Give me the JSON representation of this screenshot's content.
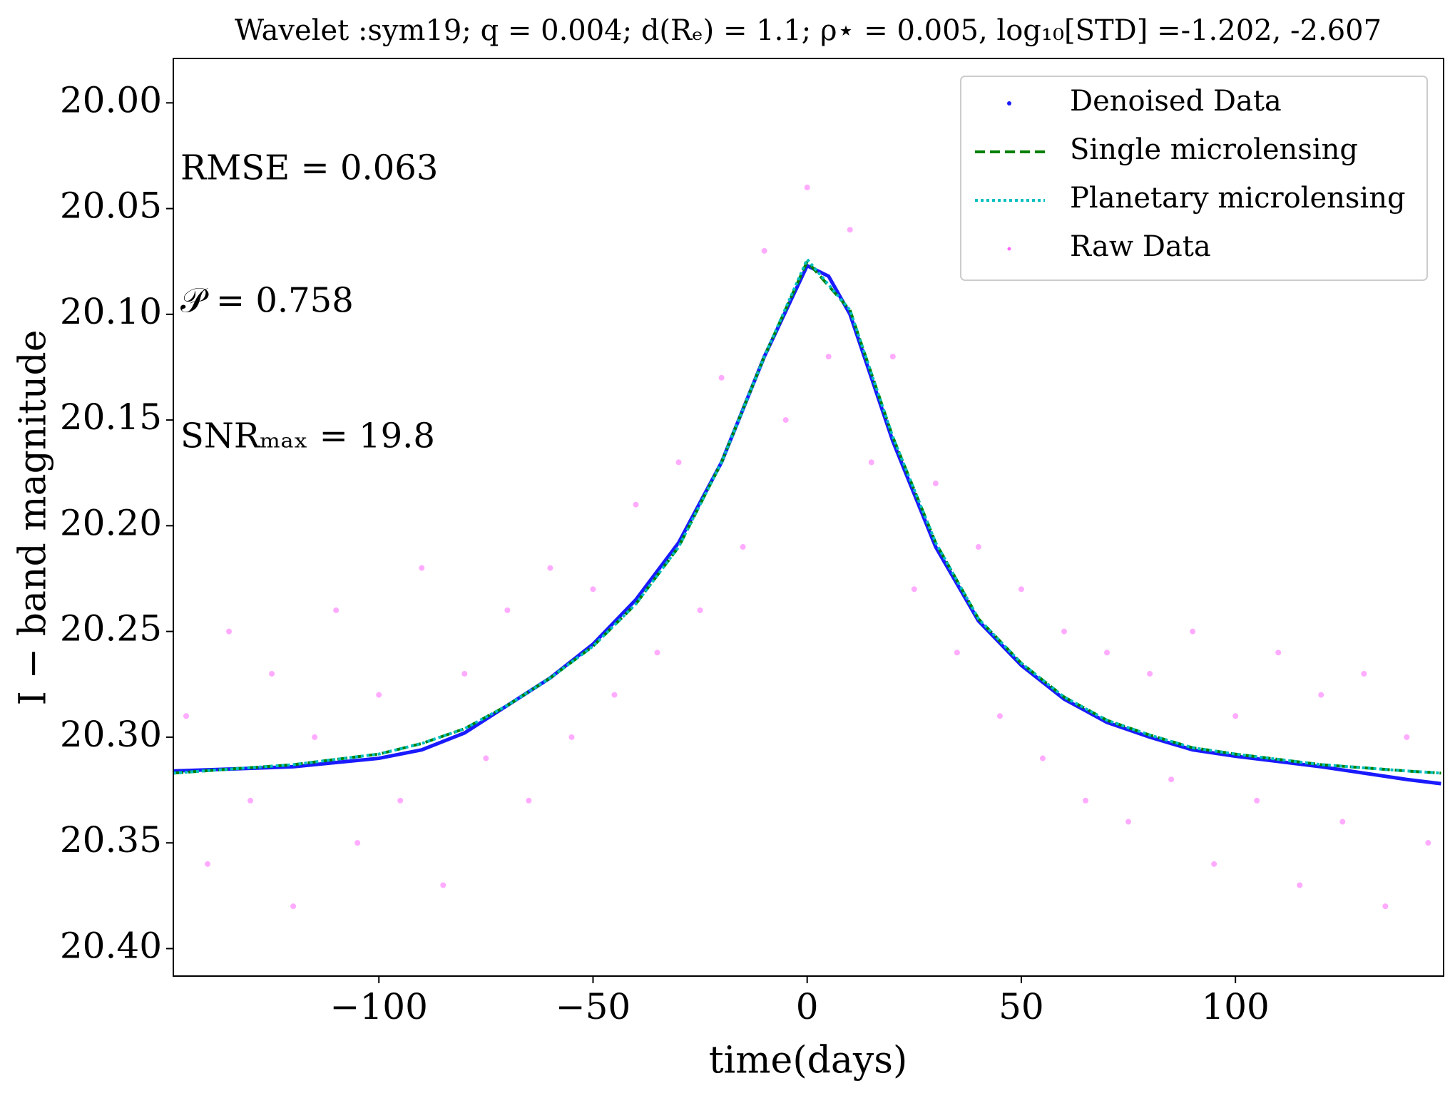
{
  "chart_data": {
    "type": "line",
    "title": "Wavelet :sym19;  q =  0.004;  d(Rₑ) =  1.1;  ρ⋆ =  0.005,  log₁₀[STD] =-1.202, -2.607",
    "x_label": "time(days)",
    "y_label": "I − band magnitude",
    "annotations": [
      "RMSE =  0.063",
      "𝒫 =  0.758",
      "SNRₘₐₓ =  19.8"
    ],
    "xlim": [
      -148,
      148.6
    ],
    "ylim": [
      20.413,
      19.979
    ],
    "xticks": [
      {
        "value": -100,
        "label": "−100"
      },
      {
        "value": -50,
        "label": "−50"
      },
      0,
      50,
      100
    ],
    "yticks": [
      {
        "value": 20.0,
        "label": "20.00"
      },
      20.05,
      {
        "value": 20.1,
        "label": "20.10"
      },
      20.15,
      {
        "value": 20.2,
        "label": "20.20"
      },
      20.25,
      {
        "value": 20.3,
        "label": "20.30"
      },
      20.35,
      {
        "value": 20.4,
        "label": "20.40"
      }
    ],
    "legend": "upper right",
    "series": [
      {
        "name": "Denoised Data",
        "color": "#1a1aff",
        "style": "solid",
        "x": [
          -148,
          -120,
          -100,
          -90,
          -80,
          -70,
          -60,
          -50,
          -40,
          -30,
          -20,
          -10,
          0,
          5,
          10,
          20,
          30,
          40,
          50,
          60,
          70,
          80,
          90,
          100,
          120,
          140,
          148
        ],
        "values": [
          20.316,
          20.314,
          20.31,
          20.306,
          20.298,
          20.285,
          20.272,
          20.256,
          20.235,
          20.208,
          20.17,
          20.12,
          20.077,
          20.082,
          20.1,
          20.16,
          20.21,
          20.245,
          20.266,
          20.282,
          20.293,
          20.3,
          20.306,
          20.309,
          20.314,
          20.32,
          20.322
        ]
      },
      {
        "name": "Single microlensing",
        "color": "#008000",
        "style": "dashed",
        "x": [
          -148,
          -120,
          -100,
          -90,
          -80,
          -70,
          -60,
          -50,
          -40,
          -30,
          -20,
          -10,
          0,
          10,
          20,
          30,
          40,
          50,
          60,
          70,
          80,
          90,
          100,
          120,
          140,
          148
        ],
        "values": [
          20.317,
          20.313,
          20.308,
          20.303,
          20.296,
          20.285,
          20.272,
          20.257,
          20.237,
          20.21,
          20.17,
          20.12,
          20.075,
          20.098,
          20.158,
          20.208,
          20.244,
          20.265,
          20.281,
          20.292,
          20.299,
          20.305,
          20.308,
          20.313,
          20.316,
          20.317
        ]
      },
      {
        "name": "Planetary microlensing",
        "color": "#00bfbf",
        "style": "dotted",
        "x": [
          -148,
          -120,
          -100,
          -90,
          -80,
          -70,
          -60,
          -50,
          -40,
          -30,
          -20,
          -10,
          0,
          10,
          20,
          30,
          40,
          50,
          60,
          70,
          80,
          90,
          100,
          120,
          140,
          148
        ],
        "values": [
          20.317,
          20.313,
          20.308,
          20.303,
          20.296,
          20.285,
          20.272,
          20.257,
          20.237,
          20.21,
          20.17,
          20.12,
          20.074,
          20.098,
          20.158,
          20.208,
          20.244,
          20.265,
          20.281,
          20.292,
          20.299,
          20.305,
          20.308,
          20.313,
          20.316,
          20.317
        ]
      },
      {
        "name": "Raw Data",
        "color": "#ff66ff",
        "style": "scatter",
        "x": [
          -145,
          -140,
          -135,
          -130,
          -125,
          -120,
          -115,
          -110,
          -105,
          -100,
          -95,
          -90,
          -85,
          -80,
          -75,
          -70,
          -65,
          -60,
          -55,
          -50,
          -45,
          -40,
          -35,
          -30,
          -25,
          -20,
          -15,
          -10,
          -5,
          0,
          5,
          10,
          15,
          20,
          25,
          30,
          35,
          40,
          45,
          50,
          55,
          60,
          65,
          70,
          75,
          80,
          85,
          90,
          95,
          100,
          105,
          110,
          115,
          120,
          125,
          130,
          135,
          140,
          145
        ],
        "values": [
          20.29,
          20.36,
          20.25,
          20.33,
          20.27,
          20.38,
          20.3,
          20.24,
          20.35,
          20.28,
          20.33,
          20.22,
          20.37,
          20.27,
          20.31,
          20.24,
          20.33,
          20.22,
          20.3,
          20.23,
          20.28,
          20.19,
          20.26,
          20.17,
          20.24,
          20.13,
          20.21,
          20.07,
          20.15,
          20.04,
          20.12,
          20.06,
          20.17,
          20.12,
          20.23,
          20.18,
          20.26,
          20.21,
          20.29,
          20.23,
          20.31,
          20.25,
          20.33,
          20.26,
          20.34,
          20.27,
          20.32,
          20.25,
          20.36,
          20.29,
          20.33,
          20.26,
          20.37,
          20.28,
          20.34,
          20.27,
          20.38,
          20.3,
          20.35
        ]
      }
    ]
  }
}
